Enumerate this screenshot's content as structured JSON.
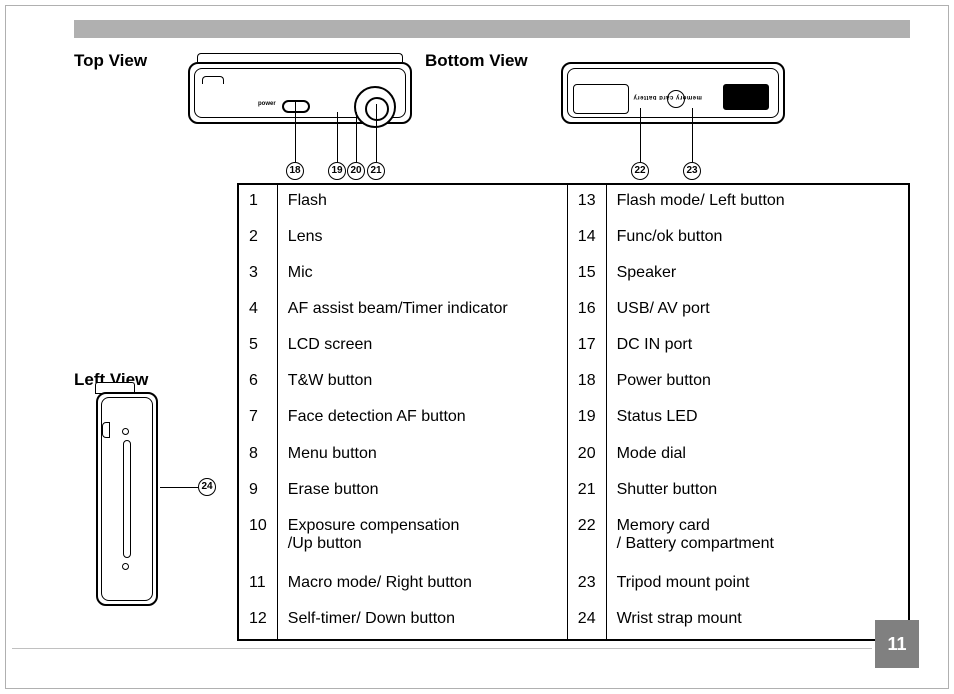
{
  "page": {
    "number": "11"
  },
  "headings": {
    "top_view": "Top View",
    "bottom_view": "Bottom View",
    "left_view": "Left View"
  },
  "callouts": {
    "top_view": [
      "18",
      "19",
      "20",
      "21"
    ],
    "bottom_view": [
      "22",
      "23"
    ],
    "left_view": [
      "24"
    ]
  },
  "camera_labels": {
    "power": "power",
    "bottom_text": "memory card   battery"
  },
  "parts": {
    "left": [
      {
        "num": "1",
        "label": "Flash"
      },
      {
        "num": "2",
        "label": "Lens"
      },
      {
        "num": "3",
        "label": "Mic"
      },
      {
        "num": "4",
        "label": "AF assist beam/Timer indicator"
      },
      {
        "num": "5",
        "label": "LCD screen"
      },
      {
        "num": "6",
        "label": "T&W button"
      },
      {
        "num": "7",
        "label": "Face detection AF button"
      },
      {
        "num": "8",
        "label": "Menu button"
      },
      {
        "num": "9",
        "label": "Erase button"
      },
      {
        "num": "10",
        "label": "Exposure compensation\n/Up button"
      },
      {
        "num": "11",
        "label": "Macro mode/ Right button"
      },
      {
        "num": "12",
        "label": "Self-timer/ Down button"
      }
    ],
    "right": [
      {
        "num": "13",
        "label": "Flash mode/ Left button"
      },
      {
        "num": "14",
        "label": "Func/ok button"
      },
      {
        "num": "15",
        "label": "Speaker"
      },
      {
        "num": "16",
        "label": "USB/ AV port"
      },
      {
        "num": "17",
        "label": "DC IN port"
      },
      {
        "num": "18",
        "label": "Power button"
      },
      {
        "num": "19",
        "label": "Status LED"
      },
      {
        "num": "20",
        "label": "Mode dial"
      },
      {
        "num": "21",
        "label": "Shutter button"
      },
      {
        "num": "22",
        "label": "Memory card\n/ Battery compartment"
      },
      {
        "num": "23",
        "label": "Tripod mount point"
      },
      {
        "num": "24",
        "label": "Wrist strap mount"
      }
    ]
  },
  "colors": {
    "header_bar": "#b0b0b0",
    "page_box": "#808080",
    "frame": "#b0b0b0",
    "text": "#000000",
    "bg": "#ffffff"
  }
}
